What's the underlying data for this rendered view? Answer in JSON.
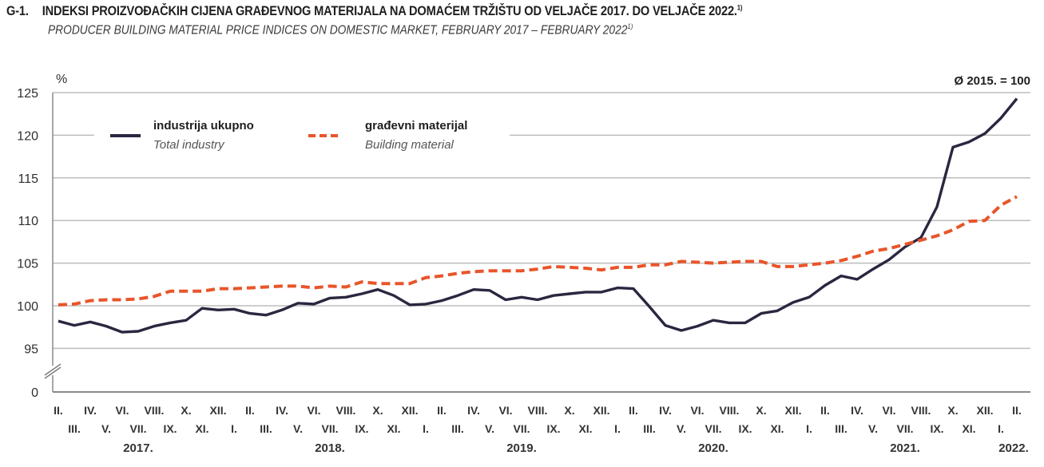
{
  "title": {
    "code": "G-1.",
    "main": "INDEKSI PROIZVOĐAČKIH CIJENA GRAĐEVNOG MATERIJALA NA DOMAĆEM TRŽIŠTU OD VELJAČE 2017. DO VELJAČE 2022.",
    "main_footnote": "1)",
    "sub": "PRODUCER BUILDING MATERIAL PRICE INDICES ON DOMESTIC MARKET, FEBRUARY 2017 – FEBRUARY 2022",
    "sub_footnote": "1)"
  },
  "chart_data": {
    "type": "line",
    "title": "INDEKSI PROIZVOĐAČKIH CIJENA GRAĐEVNOG MATERIJALA NA DOMAĆEM TRŽIŠTU OD VELJAČE 2017. DO VELJAČE 2022.",
    "subtitle": "PRODUCER BUILDING MATERIAL PRICE INDICES ON DOMESTIC MARKET, FEBRUARY 2017 – FEBRUARY 2022",
    "ylabel": "%",
    "xlabel": "",
    "base_note": "Ø 2015. = 100",
    "ylim": [
      95,
      125
    ],
    "y_axis_break": true,
    "y_ticks": [
      0,
      95,
      100,
      105,
      110,
      115,
      120,
      125
    ],
    "grid": true,
    "legend_position": "top-left",
    "x_top_labels": [
      "II.",
      "IV.",
      "VI.",
      "VIII.",
      "X.",
      "XII.",
      "II.",
      "IV.",
      "VI.",
      "VIII.",
      "X.",
      "XII.",
      "II.",
      "IV.",
      "VI.",
      "VIII.",
      "X.",
      "XII.",
      "II.",
      "IV.",
      "VI.",
      "VIII.",
      "X.",
      "XII.",
      "II.",
      "IV.",
      "VI.",
      "VIII.",
      "X.",
      "XII.",
      "II."
    ],
    "x_bottom_labels": [
      "III.",
      "V.",
      "VII.",
      "IX.",
      "XI.",
      "I.",
      "III.",
      "V.",
      "VII.",
      "IX.",
      "XI.",
      "I.",
      "III.",
      "V.",
      "VII.",
      "IX.",
      "XI.",
      "I.",
      "III.",
      "V.",
      "VII.",
      "IX.",
      "XI.",
      "I.",
      "III.",
      "V.",
      "VII.",
      "IX.",
      "XI.",
      "I."
    ],
    "years": [
      {
        "label": "2017.",
        "month_index": 5
      },
      {
        "label": "2018.",
        "month_index": 17
      },
      {
        "label": "2019.",
        "month_index": 29
      },
      {
        "label": "2020.",
        "month_index": 41
      },
      {
        "label": "2021.",
        "month_index": 53
      },
      {
        "label": "2022.",
        "month_index": 60
      }
    ],
    "x": [
      "2017-02",
      "2017-03",
      "2017-04",
      "2017-05",
      "2017-06",
      "2017-07",
      "2017-08",
      "2017-09",
      "2017-10",
      "2017-11",
      "2017-12",
      "2018-01",
      "2018-02",
      "2018-03",
      "2018-04",
      "2018-05",
      "2018-06",
      "2018-07",
      "2018-08",
      "2018-09",
      "2018-10",
      "2018-11",
      "2018-12",
      "2019-01",
      "2019-02",
      "2019-03",
      "2019-04",
      "2019-05",
      "2019-06",
      "2019-07",
      "2019-08",
      "2019-09",
      "2019-10",
      "2019-11",
      "2019-12",
      "2020-01",
      "2020-02",
      "2020-03",
      "2020-04",
      "2020-05",
      "2020-06",
      "2020-07",
      "2020-08",
      "2020-09",
      "2020-10",
      "2020-11",
      "2020-12",
      "2021-01",
      "2021-02",
      "2021-03",
      "2021-04",
      "2021-05",
      "2021-06",
      "2021-07",
      "2021-08",
      "2021-09",
      "2021-10",
      "2021-11",
      "2021-12",
      "2022-01",
      "2022-02"
    ],
    "series": [
      {
        "name": "industrija ukupno",
        "name_en": "Total industry",
        "color": "#2b2640",
        "style": "solid",
        "values": [
          98.2,
          97.7,
          98.1,
          97.6,
          96.9,
          97.0,
          97.6,
          98.0,
          98.3,
          99.7,
          99.5,
          99.6,
          99.1,
          98.9,
          99.5,
          100.3,
          100.2,
          100.9,
          101.0,
          101.4,
          101.9,
          101.2,
          100.1,
          100.2,
          100.6,
          101.2,
          101.9,
          101.8,
          100.7,
          101.0,
          100.7,
          101.2,
          101.4,
          101.6,
          101.6,
          102.1,
          102.0,
          99.9,
          97.7,
          97.1,
          97.6,
          98.3,
          98.0,
          98.0,
          99.1,
          99.4,
          100.4,
          101.0,
          102.4,
          103.5,
          103.1,
          104.3,
          105.4,
          106.9,
          108.0,
          111.6,
          118.6,
          119.2,
          120.2,
          122.0,
          124.3
        ]
      },
      {
        "name": "građevni materijal",
        "name_en": "Building material",
        "color": "#e8552a",
        "style": "dashed",
        "values": [
          100.1,
          100.2,
          100.6,
          100.7,
          100.7,
          100.8,
          101.1,
          101.7,
          101.7,
          101.7,
          102.0,
          102.0,
          102.1,
          102.2,
          102.3,
          102.3,
          102.1,
          102.3,
          102.2,
          102.8,
          102.6,
          102.6,
          102.6,
          103.3,
          103.5,
          103.8,
          104.0,
          104.1,
          104.1,
          104.1,
          104.3,
          104.6,
          104.5,
          104.4,
          104.2,
          104.5,
          104.5,
          104.8,
          104.8,
          105.2,
          105.1,
          105.0,
          105.1,
          105.2,
          105.2,
          104.6,
          104.6,
          104.8,
          105.0,
          105.3,
          105.8,
          106.4,
          106.7,
          107.2,
          107.7,
          108.2,
          108.9,
          109.9,
          110.0,
          111.8,
          112.8
        ]
      }
    ]
  }
}
